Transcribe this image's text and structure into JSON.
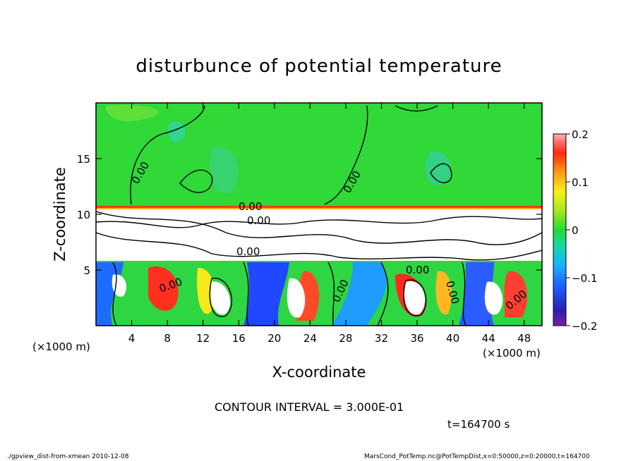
{
  "chart_data": {
    "type": "heatmap",
    "title": "disturbunce of potential temperature",
    "xlabel": "X-coordinate",
    "ylabel": "Z-coordinate",
    "x_unit_left": "(×1000 m)",
    "x_unit_right": "(×1000 m)",
    "xlim": [
      0,
      50
    ],
    "ylim": [
      0,
      20
    ],
    "x_ticks": [
      4,
      8,
      12,
      16,
      20,
      24,
      28,
      32,
      36,
      40,
      44,
      48
    ],
    "y_ticks": [
      5,
      10,
      15
    ],
    "colorbar": {
      "range": [
        -0.2,
        0.2
      ],
      "labels": [
        "0.2",
        "0.1",
        "0",
        "−0.1",
        "−0.2"
      ],
      "values": [
        0.2,
        0.1,
        0,
        -0.1,
        -0.2
      ]
    },
    "contour_interval_text": "CONTOUR INTERVAL = 3.000E-01",
    "contour_labels": [
      "0.00",
      "0.00",
      "0.00",
      "0.00",
      "0.00",
      "0.00",
      "0.00",
      "0.00",
      "0.00",
      "0.00"
    ],
    "time_label": "t=164700 s",
    "footer_left": "./gpview_dist-from-xmean  2010-12-08",
    "footer_right": "MarsCond_PotTemp.nc@PotTempDist,x=0:50000,z=0:20000,t=164700"
  }
}
